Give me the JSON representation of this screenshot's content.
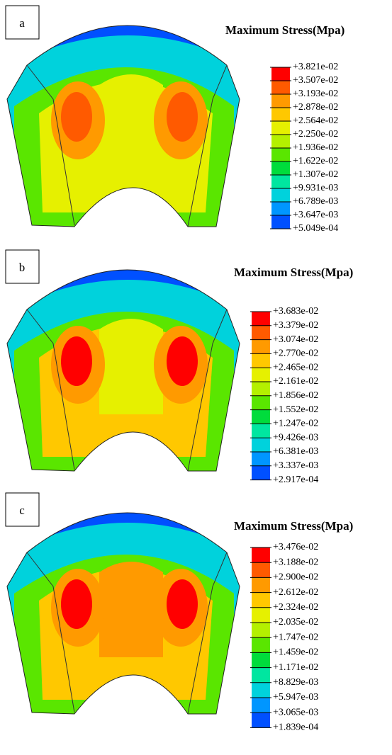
{
  "panels": [
    {
      "label": "a",
      "legend_title": "Maximum Stress(Mpa)",
      "legend_labels": [
        "+3.821e-02",
        "+3.507e-02",
        "+3.193e-02",
        "+2.878e-02",
        "+2.564e-02",
        "+2.250e-02",
        "+1.936e-02",
        "+1.622e-02",
        "+1.307e-02",
        "+9.931e-03",
        "+6.789e-03",
        "+3.647e-03",
        "+5.049e-04"
      ]
    },
    {
      "label": "b",
      "legend_title": "Maximum Stress(Mpa)",
      "legend_labels": [
        "+3.683e-02",
        "+3.379e-02",
        "+3.074e-02",
        "+2.770e-02",
        "+2.465e-02",
        "+2.161e-02",
        "+1.856e-02",
        "+1.552e-02",
        "+1.247e-02",
        "+9.426e-03",
        "+6.381e-03",
        "+3.337e-03",
        "+2.917e-04"
      ]
    },
    {
      "label": "c",
      "legend_title": "Maximum Stress(Mpa)",
      "legend_labels": [
        "+3.476e-02",
        "+3.188e-02",
        "+2.900e-02",
        "+2.612e-02",
        "+2.324e-02",
        "+2.035e-02",
        "+1.747e-02",
        "+1.459e-02",
        "+1.171e-02",
        "+8.829e-03",
        "+5.947e-03",
        "+3.065e-03",
        "+1.839e-04"
      ]
    }
  ]
}
